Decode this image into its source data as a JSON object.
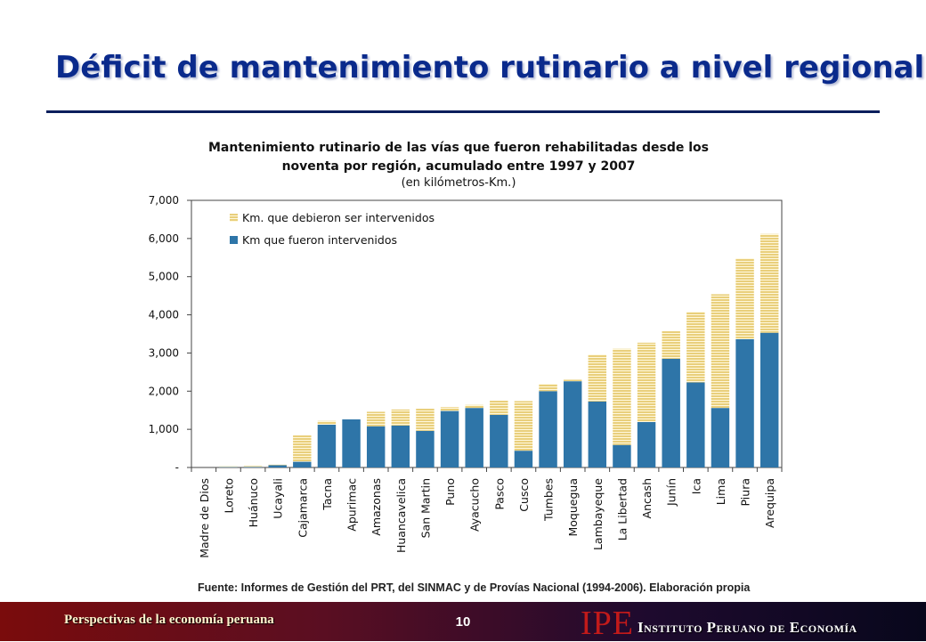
{
  "slide": {
    "title": "Déficit de mantenimiento rutinario a nivel regional",
    "source": "Fuente: Informes de Gestión del PRT, del SINMAC y de Provías Nacional (1994-2006). Elaboración propia",
    "footer_left": "Perspectivas de la economía peruana",
    "page_number": "10",
    "logo_abbr": "IPE",
    "logo_name": "Instituto Peruano de Economía"
  },
  "colors": {
    "title": "#0a2a8c",
    "intervened": "#2e75a8",
    "pending": "#e9cf7c",
    "pending_stripe": "#ffffff"
  },
  "chart_data": {
    "type": "bar",
    "stacked": true,
    "title_line1": "Mantenimiento rutinario de las vías que fueron rehabilitadas desde los",
    "title_line2": "noventa por región, acumulado entre 1997 y 2007",
    "subtitle": "(en kilómetros-Km.)",
    "xlabel": "",
    "ylabel": "",
    "ylim": [
      0,
      7000
    ],
    "yticks": [
      0,
      1000,
      2000,
      3000,
      4000,
      5000,
      6000,
      7000
    ],
    "ytick_labels": [
      "-",
      "1,000",
      "2,000",
      "3,000",
      "4,000",
      "5,000",
      "6,000",
      "7,000"
    ],
    "grid": false,
    "legend_position": "top-left",
    "categories": [
      "Madre de Dios",
      "Loreto",
      "Huánuco",
      "Ucayali",
      "Cajamarca",
      "Tacna",
      "Apurimac",
      "Amazonas",
      "Huancavelica",
      "San Martin",
      "Puno",
      "Ayacucho",
      "Pasco",
      "Cusco",
      "Tumbes",
      "Moquegua",
      "Lambayeque",
      "La Libertad",
      "Ancash",
      "Junín",
      "Ica",
      "Lima",
      "Piura",
      "Arequipa"
    ],
    "series": [
      {
        "name": "Km que fueron intervenidos",
        "values": [
          0,
          10,
          15,
          60,
          150,
          1120,
          1260,
          1080,
          1100,
          960,
          1480,
          1560,
          1380,
          440,
          2000,
          2260,
          1730,
          590,
          1190,
          2850,
          2230,
          1560,
          3360,
          3530
        ]
      },
      {
        "name": "Km. que debieron ser intervenidos",
        "values": [
          0,
          20,
          25,
          20,
          690,
          100,
          0,
          380,
          420,
          580,
          100,
          80,
          370,
          1300,
          190,
          40,
          1230,
          2520,
          2080,
          720,
          1850,
          2980,
          2120,
          2590
        ]
      }
    ]
  }
}
